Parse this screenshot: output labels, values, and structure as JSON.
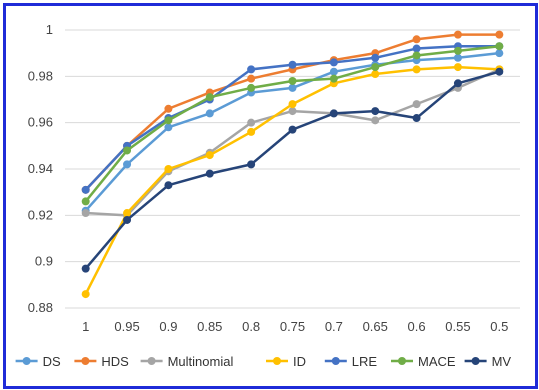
{
  "chart_data": {
    "type": "line",
    "title": "",
    "xlabel": "",
    "ylabel": "",
    "categories": [
      "1",
      "0.95",
      "0.9",
      "0.85",
      "0.8",
      "0.75",
      "0.7",
      "0.65",
      "0.6",
      "0.55",
      "0.5"
    ],
    "ylim": [
      0.88,
      1.0
    ],
    "yticks": [
      "0.88",
      "0.9",
      "0.92",
      "0.94",
      "0.96",
      "0.98",
      "1"
    ],
    "grid": "horizontal",
    "legend_position": "bottom",
    "series": [
      {
        "name": "DS",
        "color": "#5b9bd5",
        "values": [
          0.922,
          0.942,
          0.958,
          0.964,
          0.973,
          0.975,
          0.982,
          0.985,
          0.987,
          0.988,
          0.99
        ]
      },
      {
        "name": "HDS",
        "color": "#ed7d31",
        "values": [
          0.931,
          0.95,
          0.966,
          0.973,
          0.979,
          0.983,
          0.987,
          0.99,
          0.996,
          0.998,
          0.998
        ]
      },
      {
        "name": "Multinomial",
        "color": "#a5a5a5",
        "values": [
          0.921,
          0.92,
          0.939,
          0.947,
          0.96,
          0.965,
          0.964,
          0.961,
          0.968,
          0.975,
          0.983
        ]
      },
      {
        "name": "ID",
        "color": "#ffc000",
        "values": [
          0.886,
          0.921,
          0.94,
          0.946,
          0.956,
          0.968,
          0.977,
          0.981,
          0.983,
          0.984,
          0.983
        ]
      },
      {
        "name": "LRE",
        "color": "#4472c4",
        "values": [
          0.931,
          0.95,
          0.962,
          0.97,
          0.983,
          0.985,
          0.986,
          0.988,
          0.992,
          0.993,
          0.993
        ]
      },
      {
        "name": "MACE",
        "color": "#70ad47",
        "values": [
          0.926,
          0.948,
          0.961,
          0.971,
          0.975,
          0.978,
          0.979,
          0.984,
          0.989,
          0.991,
          0.993
        ]
      },
      {
        "name": "MV",
        "color": "#264478",
        "values": [
          0.897,
          0.918,
          0.933,
          0.938,
          0.942,
          0.957,
          0.964,
          0.965,
          0.962,
          0.977,
          0.982
        ]
      }
    ]
  }
}
